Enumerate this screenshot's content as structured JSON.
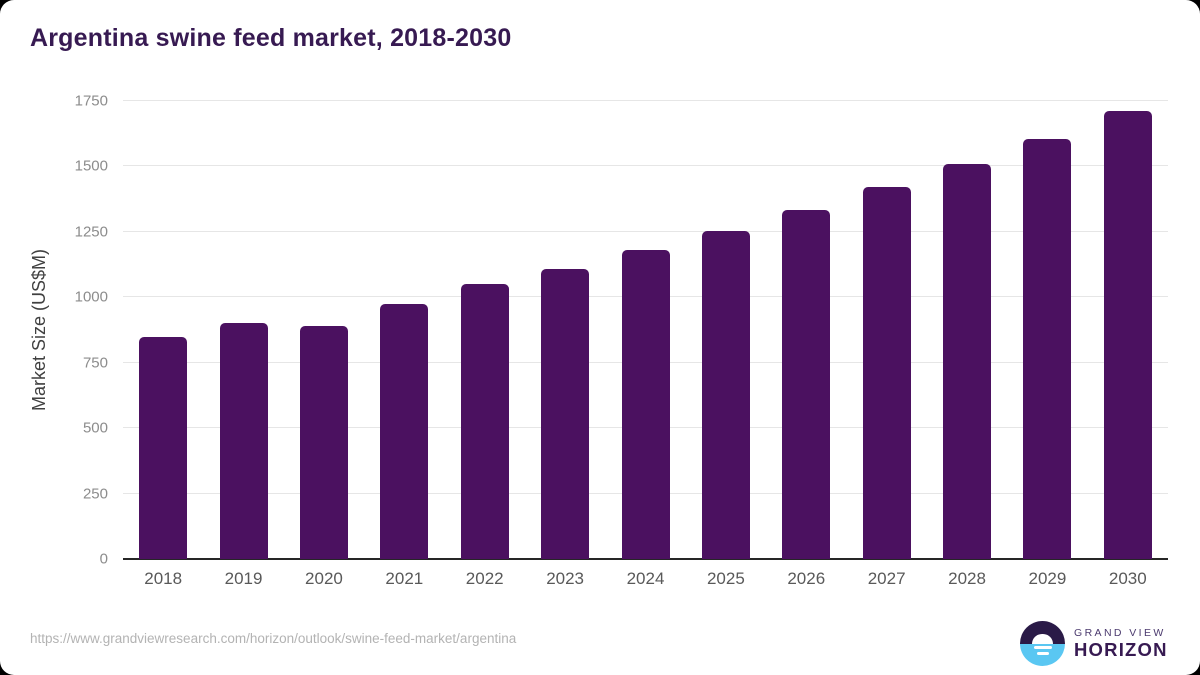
{
  "page": {
    "title": "Argentina swine feed market, 2018-2030",
    "source_url": "https://www.grandviewresearch.com/horizon/outlook/swine-feed-market/argentina"
  },
  "chart_data": {
    "type": "bar",
    "title": "Argentina swine feed market, 2018-2030",
    "categories": [
      "2018",
      "2019",
      "2020",
      "2021",
      "2022",
      "2023",
      "2024",
      "2025",
      "2026",
      "2027",
      "2028",
      "2029",
      "2030"
    ],
    "values": [
      850,
      900,
      890,
      975,
      1050,
      1110,
      1180,
      1255,
      1335,
      1420,
      1510,
      1605,
      1710
    ],
    "xlabel": "",
    "ylabel": "Market Size (US$M)",
    "ylim": [
      0,
      1750
    ],
    "yticks": [
      0,
      250,
      500,
      750,
      1000,
      1250,
      1500,
      1750
    ],
    "grid": true,
    "legend": false,
    "bar_color": "#4b1160"
  },
  "colors": {
    "bar": "#4b1160",
    "title_text": "#371a52",
    "axis_line": "#262626",
    "gridline": "#e6e6e6",
    "x_tick_text": "#595959",
    "y_tick_text": "#8c8c8c",
    "y_axis_title_text": "#404040",
    "url_text": "#b3b3b3",
    "logo_dark": "#2a1a47",
    "logo_blue": "#5ac7f2"
  },
  "logo": {
    "line1": "GRAND VIEW",
    "line2": "HORIZON"
  }
}
